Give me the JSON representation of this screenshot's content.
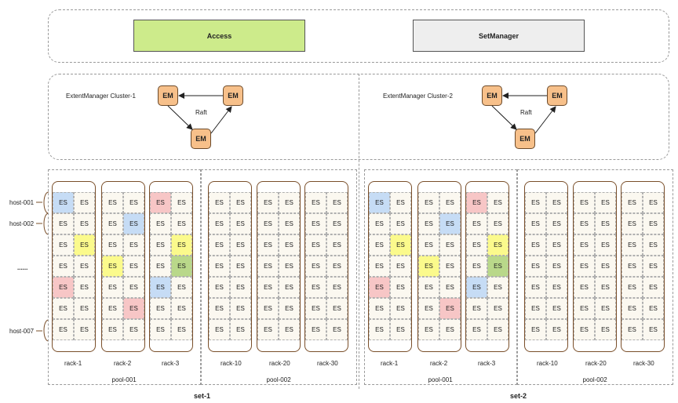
{
  "top": {
    "access_label": "Access",
    "setmanager_label": "SetManager"
  },
  "clusters": [
    {
      "title": "ExtentManager Cluster-1",
      "raft_label": "Raft",
      "em_labels": [
        "EM",
        "EM",
        "EM"
      ]
    },
    {
      "title": "ExtentManager Cluster-2",
      "raft_label": "Raft",
      "em_labels": [
        "EM",
        "EM",
        "EM"
      ]
    }
  ],
  "hosts": [
    "host-001",
    "host-002",
    "......",
    "host-007"
  ],
  "cell_label": "ES",
  "sets": [
    {
      "name": "set-1",
      "pools": [
        {
          "name": "pool-001",
          "racks": [
            {
              "name": "rack-1",
              "colored": [
                {
                  "row": 0,
                  "col": 0,
                  "color": "blue"
                },
                {
                  "row": 4,
                  "col": 0,
                  "color": "pink"
                },
                {
                  "row": 2,
                  "col": 1,
                  "color": "yellow"
                }
              ]
            },
            {
              "name": "rack-2",
              "colored": [
                {
                  "row": 1,
                  "col": 1,
                  "color": "blue"
                },
                {
                  "row": 3,
                  "col": 0,
                  "color": "yellow"
                },
                {
                  "row": 5,
                  "col": 1,
                  "color": "pink"
                }
              ]
            },
            {
              "name": "rack-3",
              "colored": [
                {
                  "row": 0,
                  "col": 0,
                  "color": "pink"
                },
                {
                  "row": 2,
                  "col": 1,
                  "color": "yellow"
                },
                {
                  "row": 3,
                  "col": 1,
                  "color": "green"
                },
                {
                  "row": 4,
                  "col": 0,
                  "color": "blue"
                }
              ]
            }
          ]
        },
        {
          "name": "pool-002",
          "racks": [
            {
              "name": "rack-10",
              "colored": []
            },
            {
              "name": "rack-20",
              "colored": []
            },
            {
              "name": "rack-30",
              "colored": []
            }
          ]
        }
      ]
    },
    {
      "name": "set-2",
      "pools": [
        {
          "name": "pool-001",
          "racks": [
            {
              "name": "rack-1",
              "colored": [
                {
                  "row": 0,
                  "col": 0,
                  "color": "blue"
                },
                {
                  "row": 4,
                  "col": 0,
                  "color": "pink"
                },
                {
                  "row": 2,
                  "col": 1,
                  "color": "yellow"
                }
              ]
            },
            {
              "name": "rack-2",
              "colored": [
                {
                  "row": 1,
                  "col": 1,
                  "color": "blue"
                },
                {
                  "row": 3,
                  "col": 0,
                  "color": "yellow"
                },
                {
                  "row": 5,
                  "col": 1,
                  "color": "pink"
                }
              ]
            },
            {
              "name": "rack-3",
              "colored": [
                {
                  "row": 0,
                  "col": 0,
                  "color": "pink"
                },
                {
                  "row": 2,
                  "col": 1,
                  "color": "yellow"
                },
                {
                  "row": 3,
                  "col": 1,
                  "color": "green"
                },
                {
                  "row": 4,
                  "col": 0,
                  "color": "blue"
                }
              ]
            }
          ]
        },
        {
          "name": "pool-002",
          "racks": [
            {
              "name": "rack-10",
              "colored": []
            },
            {
              "name": "rack-20",
              "colored": []
            },
            {
              "name": "rack-30",
              "colored": []
            }
          ]
        }
      ]
    }
  ],
  "colors": {
    "access_fill": "#cdeb8b",
    "setmanager_fill": "#eeeeee",
    "em_fill": "#f7c08a",
    "cell_fill": "#fbf8f0",
    "blue": "#c6dcf5",
    "pink": "#f7c6c6",
    "yellow": "#fbfa8c",
    "green": "#b9d88a",
    "rack_border": "#7a4f2a"
  }
}
